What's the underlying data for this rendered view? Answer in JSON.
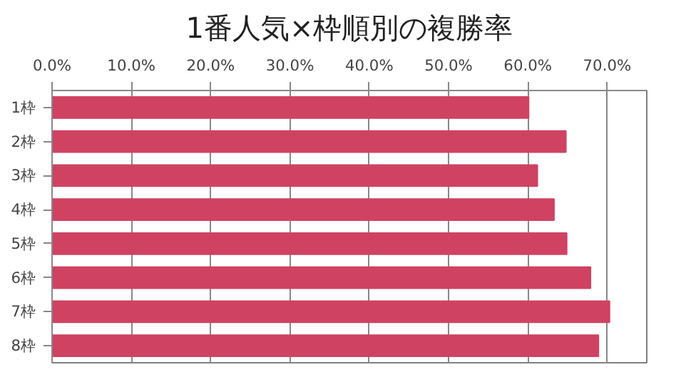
{
  "chart_data": {
    "type": "bar",
    "orientation": "horizontal",
    "title": "1番人気×枠順別の複勝率",
    "categories": [
      "1枠",
      "2枠",
      "3枠",
      "4枠",
      "5枠",
      "6枠",
      "7枠",
      "8枠"
    ],
    "values": [
      60.1,
      64.8,
      61.2,
      63.3,
      64.9,
      67.9,
      70.3,
      68.9
    ],
    "color": "#d04262",
    "xlim": [
      0,
      75
    ],
    "xticks": [
      {
        "value": 0,
        "label": "0.0%"
      },
      {
        "value": 10,
        "label": "10.0%"
      },
      {
        "value": 20,
        "label": "20.0%"
      },
      {
        "value": 30,
        "label": "30.0%"
      },
      {
        "value": 40,
        "label": "40.0%"
      },
      {
        "value": 50,
        "label": "50.0%"
      },
      {
        "value": 60,
        "label": "60.0%"
      },
      {
        "value": 70,
        "label": "70.0%"
      }
    ],
    "grid": "x"
  }
}
